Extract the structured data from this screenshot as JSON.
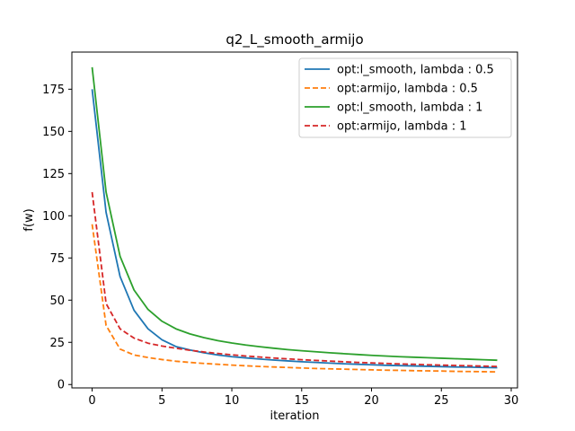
{
  "chart_data": {
    "type": "line",
    "title": "q2_L_smooth_armijo",
    "xlabel": "iteration",
    "ylabel": "f(w)",
    "xlim": [
      -1.45,
      30.45
    ],
    "ylim": [
      -2,
      197
    ],
    "xticks": [
      0,
      5,
      10,
      15,
      20,
      25,
      30
    ],
    "yticks": [
      0,
      25,
      50,
      75,
      100,
      125,
      150,
      175
    ],
    "grid": false,
    "legend_position": "top-right",
    "x": [
      0,
      1,
      2,
      3,
      4,
      5,
      6,
      7,
      8,
      9,
      10,
      11,
      12,
      13,
      14,
      15,
      16,
      17,
      18,
      19,
      20,
      21,
      22,
      23,
      24,
      25,
      26,
      27,
      28,
      29
    ],
    "series": [
      {
        "name": "opt:l_smooth, lambda : 0.5",
        "color": "#1f77b4",
        "dash": "solid",
        "values": [
          175,
          102,
          64,
          44,
          33,
          26.5,
          22.5,
          20.5,
          18.8,
          17.5,
          16.5,
          15.8,
          15.1,
          14.5,
          14.0,
          13.5,
          13.1,
          12.7,
          12.3,
          12.0,
          11.7,
          11.4,
          11.2,
          11.0,
          10.8,
          10.6,
          10.4,
          10.3,
          10.1,
          10.0
        ]
      },
      {
        "name": "opt:armijo, lambda : 0.5",
        "color": "#ff7f0e",
        "dash": "dashed",
        "values": [
          95,
          35,
          21,
          17.5,
          16,
          14.8,
          13.8,
          13.1,
          12.5,
          12.0,
          11.5,
          11.1,
          10.7,
          10.4,
          10.1,
          9.8,
          9.5,
          9.3,
          9.1,
          8.9,
          8.7,
          8.5,
          8.4,
          8.2,
          8.1,
          8.0,
          7.8,
          7.7,
          7.6,
          7.5
        ]
      },
      {
        "name": "opt:l_smooth, lambda : 1",
        "color": "#2ca02c",
        "dash": "solid",
        "values": [
          188,
          114,
          76,
          56,
          44.5,
          37.5,
          33,
          30,
          27.8,
          26,
          24.6,
          23.4,
          22.4,
          21.5,
          20.7,
          20.0,
          19.4,
          18.8,
          18.3,
          17.8,
          17.3,
          16.9,
          16.5,
          16.2,
          15.9,
          15.6,
          15.3,
          15.0,
          14.7,
          14.4
        ]
      },
      {
        "name": "opt:armijo, lambda : 1",
        "color": "#d62728",
        "dash": "dashed",
        "values": [
          114,
          48,
          33,
          27.5,
          24.5,
          22.8,
          21.5,
          20.3,
          19.3,
          18.4,
          17.6,
          16.9,
          16.3,
          15.7,
          15.2,
          14.7,
          14.3,
          13.9,
          13.5,
          13.1,
          12.8,
          12.5,
          12.2,
          12.0,
          11.7,
          11.5,
          11.3,
          11.1,
          10.9,
          10.7
        ]
      }
    ]
  }
}
